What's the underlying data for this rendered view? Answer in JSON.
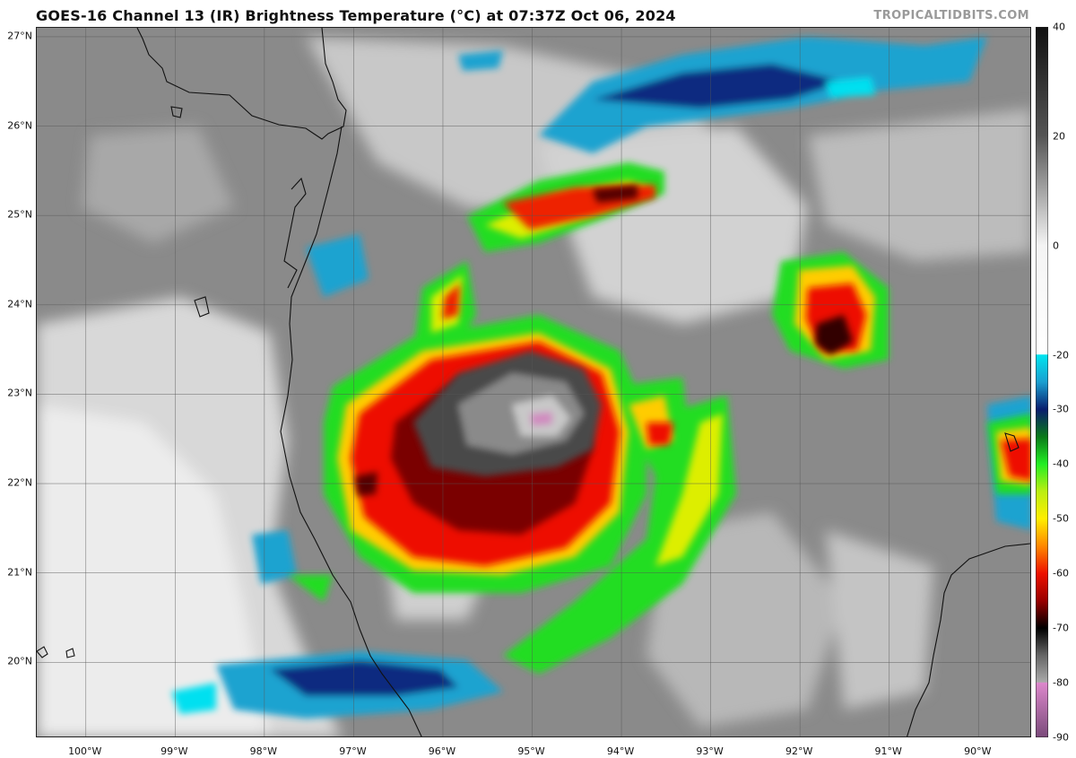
{
  "header": {
    "title": "GOES-16 Channel 13 (IR) Brightness Temperature (°C) at 07:37Z Oct 06, 2024",
    "credit": "TROPICALTIDBITS.COM"
  },
  "map": {
    "latitude_labels": [
      {
        "label": "27°N",
        "lat": 27
      },
      {
        "label": "26°N",
        "lat": 26
      },
      {
        "label": "25°N",
        "lat": 25
      },
      {
        "label": "24°N",
        "lat": 24
      },
      {
        "label": "23°N",
        "lat": 23
      },
      {
        "label": "22°N",
        "lat": 22
      },
      {
        "label": "21°N",
        "lat": 21
      },
      {
        "label": "20°N",
        "lat": 20
      }
    ],
    "longitude_labels": [
      {
        "label": "100°W",
        "lon": -100
      },
      {
        "label": "99°W",
        "lon": -99
      },
      {
        "label": "98°W",
        "lon": -98
      },
      {
        "label": "97°W",
        "lon": -97
      },
      {
        "label": "96°W",
        "lon": -96
      },
      {
        "label": "95°W",
        "lon": -95
      },
      {
        "label": "94°W",
        "lon": -94
      },
      {
        "label": "93°W",
        "lon": -93
      },
      {
        "label": "92°W",
        "lon": -92
      },
      {
        "label": "91°W",
        "lon": -91
      },
      {
        "label": "90°W",
        "lon": -90
      }
    ],
    "lon_range": [
      -100.55,
      -89.4
    ],
    "lat_range": [
      19.15,
      27.1
    ],
    "background_color": "#8a8a8a"
  },
  "colorbar": {
    "range": [
      -90,
      40
    ],
    "ticks": [
      {
        "label": "40",
        "value": 40
      },
      {
        "label": "20",
        "value": 20
      },
      {
        "label": "0",
        "value": 0
      },
      {
        "label": "-20",
        "value": -20
      },
      {
        "label": "-30",
        "value": -30
      },
      {
        "label": "-40",
        "value": -40
      },
      {
        "label": "-50",
        "value": -50
      },
      {
        "label": "-60",
        "value": -60
      },
      {
        "label": "-70",
        "value": -70
      },
      {
        "label": "-80",
        "value": -80
      },
      {
        "label": "-90",
        "value": -90
      }
    ],
    "stops": [
      {
        "value": 40,
        "color": "#111111"
      },
      {
        "value": 20,
        "color": "#555555"
      },
      {
        "value": 0,
        "color": "#f4f4f4"
      },
      {
        "value": -19.9,
        "color": "#ffffff"
      },
      {
        "value": -20,
        "color": "#00e5f0"
      },
      {
        "value": -25,
        "color": "#1a9fd0"
      },
      {
        "value": -30,
        "color": "#0a1e6e"
      },
      {
        "value": -35,
        "color": "#0a7a1a"
      },
      {
        "value": -40,
        "color": "#22ee22"
      },
      {
        "value": -45,
        "color": "#bbee11"
      },
      {
        "value": -50,
        "color": "#ffee00"
      },
      {
        "value": -55,
        "color": "#ff8800"
      },
      {
        "value": -60,
        "color": "#ee1100"
      },
      {
        "value": -65,
        "color": "#990000"
      },
      {
        "value": -70,
        "color": "#000000"
      },
      {
        "value": -75,
        "color": "#666666"
      },
      {
        "value": -79.9,
        "color": "#aaaaaa"
      },
      {
        "value": -80,
        "color": "#dd88cc"
      },
      {
        "value": -90,
        "color": "#7a4a7a"
      }
    ]
  }
}
